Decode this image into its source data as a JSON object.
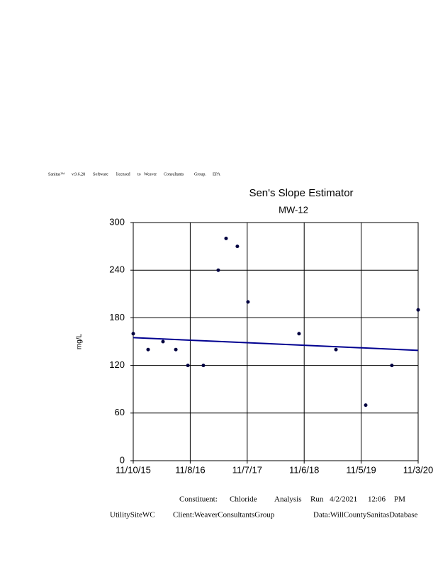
{
  "header": {
    "words": [
      "Sanitas™",
      "v.9.6.28",
      "Software",
      "licensed",
      "to",
      "Weaver",
      "Consultants",
      "Group.",
      "EPA"
    ]
  },
  "chart_data": {
    "type": "scatter",
    "title": "Sen's Slope Estimator",
    "subtitle": "MW-12",
    "y_label": "mg/L",
    "x": [
      "2015-11-10",
      "2016-02-13",
      "2016-05-18",
      "2016-08-08",
      "2016-10-24",
      "2017-01-31",
      "2017-05-06",
      "2017-06-25",
      "2017-09-05",
      "2017-11-12",
      "2018-10-04",
      "2019-05-28",
      "2019-12-04",
      "2020-05-19",
      "2020-11-03"
    ],
    "values": [
      160,
      140,
      150,
      140,
      120,
      120,
      240,
      280,
      270,
      200,
      160,
      140,
      70,
      120,
      190
    ],
    "color": "#000040",
    "trend": {
      "x": [
        "2015-11-10",
        "2020-11-03"
      ],
      "values": [
        155,
        139
      ],
      "color": "#000090"
    },
    "xlim": [
      "2015-11-10",
      "2020-11-03"
    ],
    "xticks": [
      {
        "value": "2015-11-10",
        "label": "11/10/15"
      },
      {
        "value": "2016-11-08",
        "label": "11/8/16"
      },
      {
        "value": "2017-11-07",
        "label": "11/7/17"
      },
      {
        "value": "2018-11-06",
        "label": "11/6/18"
      },
      {
        "value": "2019-11-05",
        "label": "11/5/19"
      },
      {
        "value": "2020-11-03",
        "label": "11/3/20"
      }
    ],
    "ylim": [
      0,
      300
    ],
    "yticks": [
      0,
      60,
      120,
      180,
      240,
      300
    ],
    "grid": true
  },
  "footer": {
    "line1": [
      "Constituent:",
      "Chloride",
      "Analysis",
      "Run",
      "4/2/2021",
      "12:06",
      "PM"
    ],
    "site": "UtilitySiteWC",
    "client": "Client:WeaverConsultantsGroup",
    "data": "Data:WillCountySanitasDatabase"
  }
}
